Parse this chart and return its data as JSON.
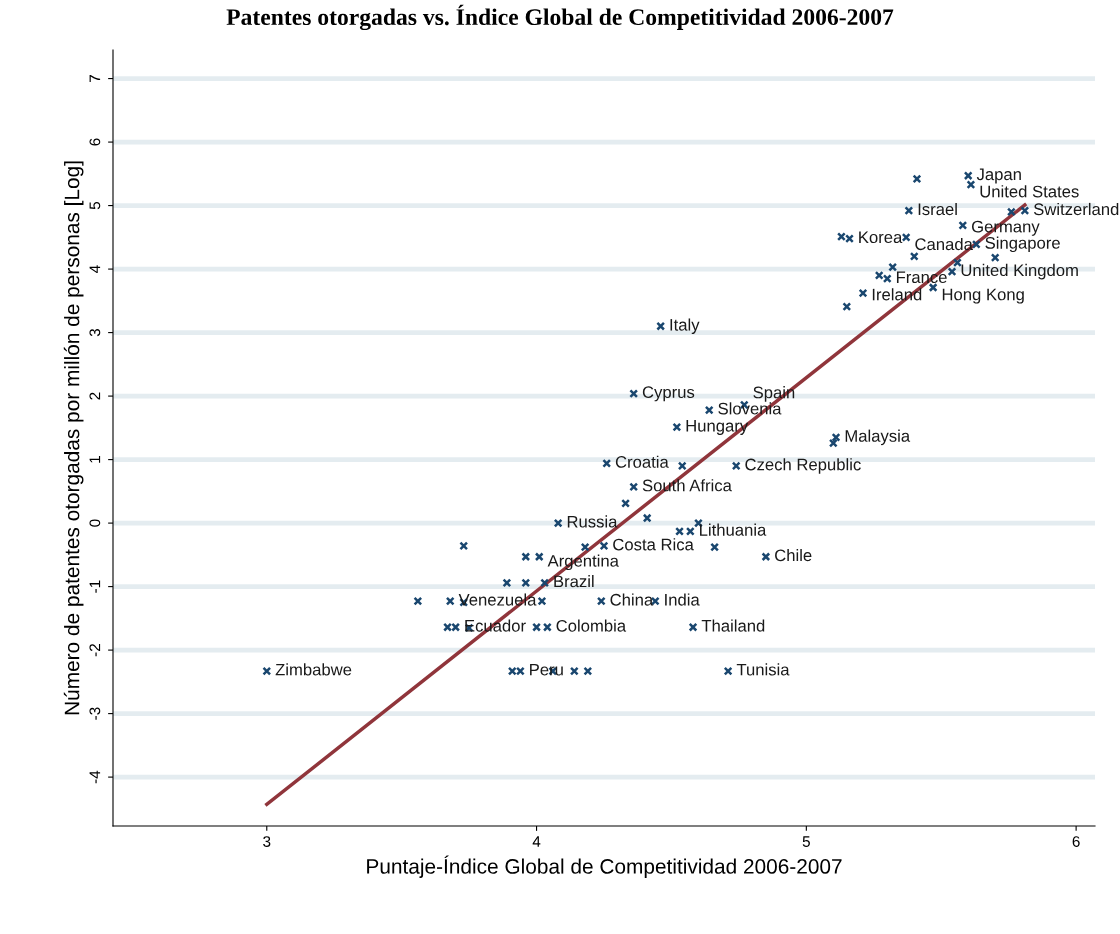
{
  "chart_data": {
    "type": "scatter",
    "title": "Patentes otorgadas vs. Índice Global de Competitividad 2006-2007",
    "xlabel": "Puntaje-Índice Global de Competitividad 2006-2007",
    "ylabel": "Número de patentes otorgadas por millón de personas [Log]",
    "xlim": [
      2.43,
      6.07
    ],
    "ylim": [
      -4.77,
      7.45
    ],
    "xticks": [
      3,
      4,
      5,
      6
    ],
    "yticks": [
      -4,
      -3,
      -2,
      -1,
      0,
      1,
      2,
      3,
      4,
      5,
      6,
      7
    ],
    "grid": "y",
    "series": [
      {
        "marker": "cross",
        "color": "#1a476f",
        "x": [
          5.41,
          5.6,
          5.61,
          5.38,
          5.81,
          5.76,
          5.58,
          5.13,
          5.16,
          5.37,
          5.63,
          5.7,
          5.4,
          5.32,
          5.27,
          5.3,
          5.21,
          5.15,
          5.47,
          5.54,
          5.56,
          4.46,
          4.36,
          4.64,
          4.77,
          4.52,
          5.11,
          5.1,
          4.26,
          4.54,
          4.74,
          4.36,
          4.33,
          4.41,
          4.08,
          4.53,
          4.57,
          4.6,
          4.25,
          4.18,
          4.66,
          4.85,
          3.73,
          3.96,
          4.01,
          3.89,
          3.96,
          4.03,
          3.56,
          3.68,
          3.73,
          4.02,
          4.24,
          4.44,
          3.67,
          3.7,
          3.75,
          4.0,
          4.04,
          4.58,
          3.0,
          3.91,
          3.94,
          4.06,
          4.14,
          4.19,
          4.71
        ],
        "values": [
          5.42,
          5.47,
          5.33,
          4.92,
          4.92,
          4.9,
          4.69,
          4.51,
          4.48,
          4.5,
          4.39,
          4.18,
          4.2,
          4.03,
          3.9,
          3.85,
          3.62,
          3.41,
          3.71,
          3.96,
          4.1,
          3.1,
          2.04,
          1.78,
          1.86,
          1.51,
          1.35,
          1.26,
          0.94,
          0.9,
          0.9,
          0.57,
          0.31,
          0.08,
          0.0,
          -0.13,
          -0.13,
          0.0,
          -0.36,
          -0.38,
          -0.38,
          -0.53,
          -0.36,
          -0.53,
          -0.53,
          -0.94,
          -0.94,
          -0.94,
          -1.23,
          -1.23,
          -1.25,
          -1.23,
          -1.23,
          -1.23,
          -1.64,
          -1.64,
          -1.65,
          -1.64,
          -1.64,
          -1.64,
          -2.33,
          -2.33,
          -2.33,
          -2.33,
          -2.33,
          -2.33,
          -2.33
        ]
      },
      {
        "type": "line",
        "color": "#90353b",
        "x": [
          3.0,
          5.81
        ],
        "values": [
          -4.43,
          5.01
        ]
      }
    ],
    "annotations": [
      {
        "text": "Japan",
        "x": 5.6,
        "y": 5.47
      },
      {
        "text": "United States",
        "x": 5.61,
        "y": 5.33
      },
      {
        "text": "Israel",
        "x": 5.38,
        "y": 4.92
      },
      {
        "text": "Switzerland",
        "x": 5.81,
        "y": 4.92
      },
      {
        "text": "Germany",
        "x": 5.58,
        "y": 4.69
      },
      {
        "text": "Korea",
        "x": 5.16,
        "y": 4.48
      },
      {
        "text": "Canada",
        "x": 5.37,
        "y": 4.5
      },
      {
        "text": "Singapore",
        "x": 5.63,
        "y": 4.39
      },
      {
        "text": "France",
        "x": 5.3,
        "y": 3.85
      },
      {
        "text": "United Kingdom",
        "x": 5.54,
        "y": 3.96
      },
      {
        "text": "Ireland",
        "x": 5.21,
        "y": 3.62
      },
      {
        "text": "Hong Kong",
        "x": 5.47,
        "y": 3.71
      },
      {
        "text": "Italy",
        "x": 4.46,
        "y": 3.1
      },
      {
        "text": "Cyprus",
        "x": 4.36,
        "y": 2.04
      },
      {
        "text": "Slovenia",
        "x": 4.64,
        "y": 1.78
      },
      {
        "text": "Spain",
        "x": 4.77,
        "y": 1.86
      },
      {
        "text": "Hungary",
        "x": 4.52,
        "y": 1.51
      },
      {
        "text": "Malaysia",
        "x": 5.11,
        "y": 1.35
      },
      {
        "text": "Croatia",
        "x": 4.26,
        "y": 0.94
      },
      {
        "text": "Czech Republic",
        "x": 4.74,
        "y": 0.9
      },
      {
        "text": "South Africa",
        "x": 4.36,
        "y": 0.57
      },
      {
        "text": "Russia",
        "x": 4.08,
        "y": 0.0
      },
      {
        "text": "Lithuania",
        "x": 4.57,
        "y": -0.13
      },
      {
        "text": "Costa Rica",
        "x": 4.25,
        "y": -0.36
      },
      {
        "text": "Chile",
        "x": 4.85,
        "y": -0.53
      },
      {
        "text": "Argentina",
        "x": 4.01,
        "y": -0.53
      },
      {
        "text": "Brazil",
        "x": 4.03,
        "y": -0.94
      },
      {
        "text": "Venezuela",
        "x": 3.68,
        "y": -1.23
      },
      {
        "text": "China",
        "x": 4.24,
        "y": -1.23
      },
      {
        "text": "India",
        "x": 4.44,
        "y": -1.23
      },
      {
        "text": "Ecuador",
        "x": 3.7,
        "y": -1.64
      },
      {
        "text": "Colombia",
        "x": 4.04,
        "y": -1.64
      },
      {
        "text": "Thailand",
        "x": 4.58,
        "y": -1.64
      },
      {
        "text": "Zimbabwe",
        "x": 3.0,
        "y": -2.33
      },
      {
        "text": "Peru",
        "x": 3.94,
        "y": -2.33
      },
      {
        "text": "Tunisia",
        "x": 4.71,
        "y": -2.33
      }
    ]
  }
}
